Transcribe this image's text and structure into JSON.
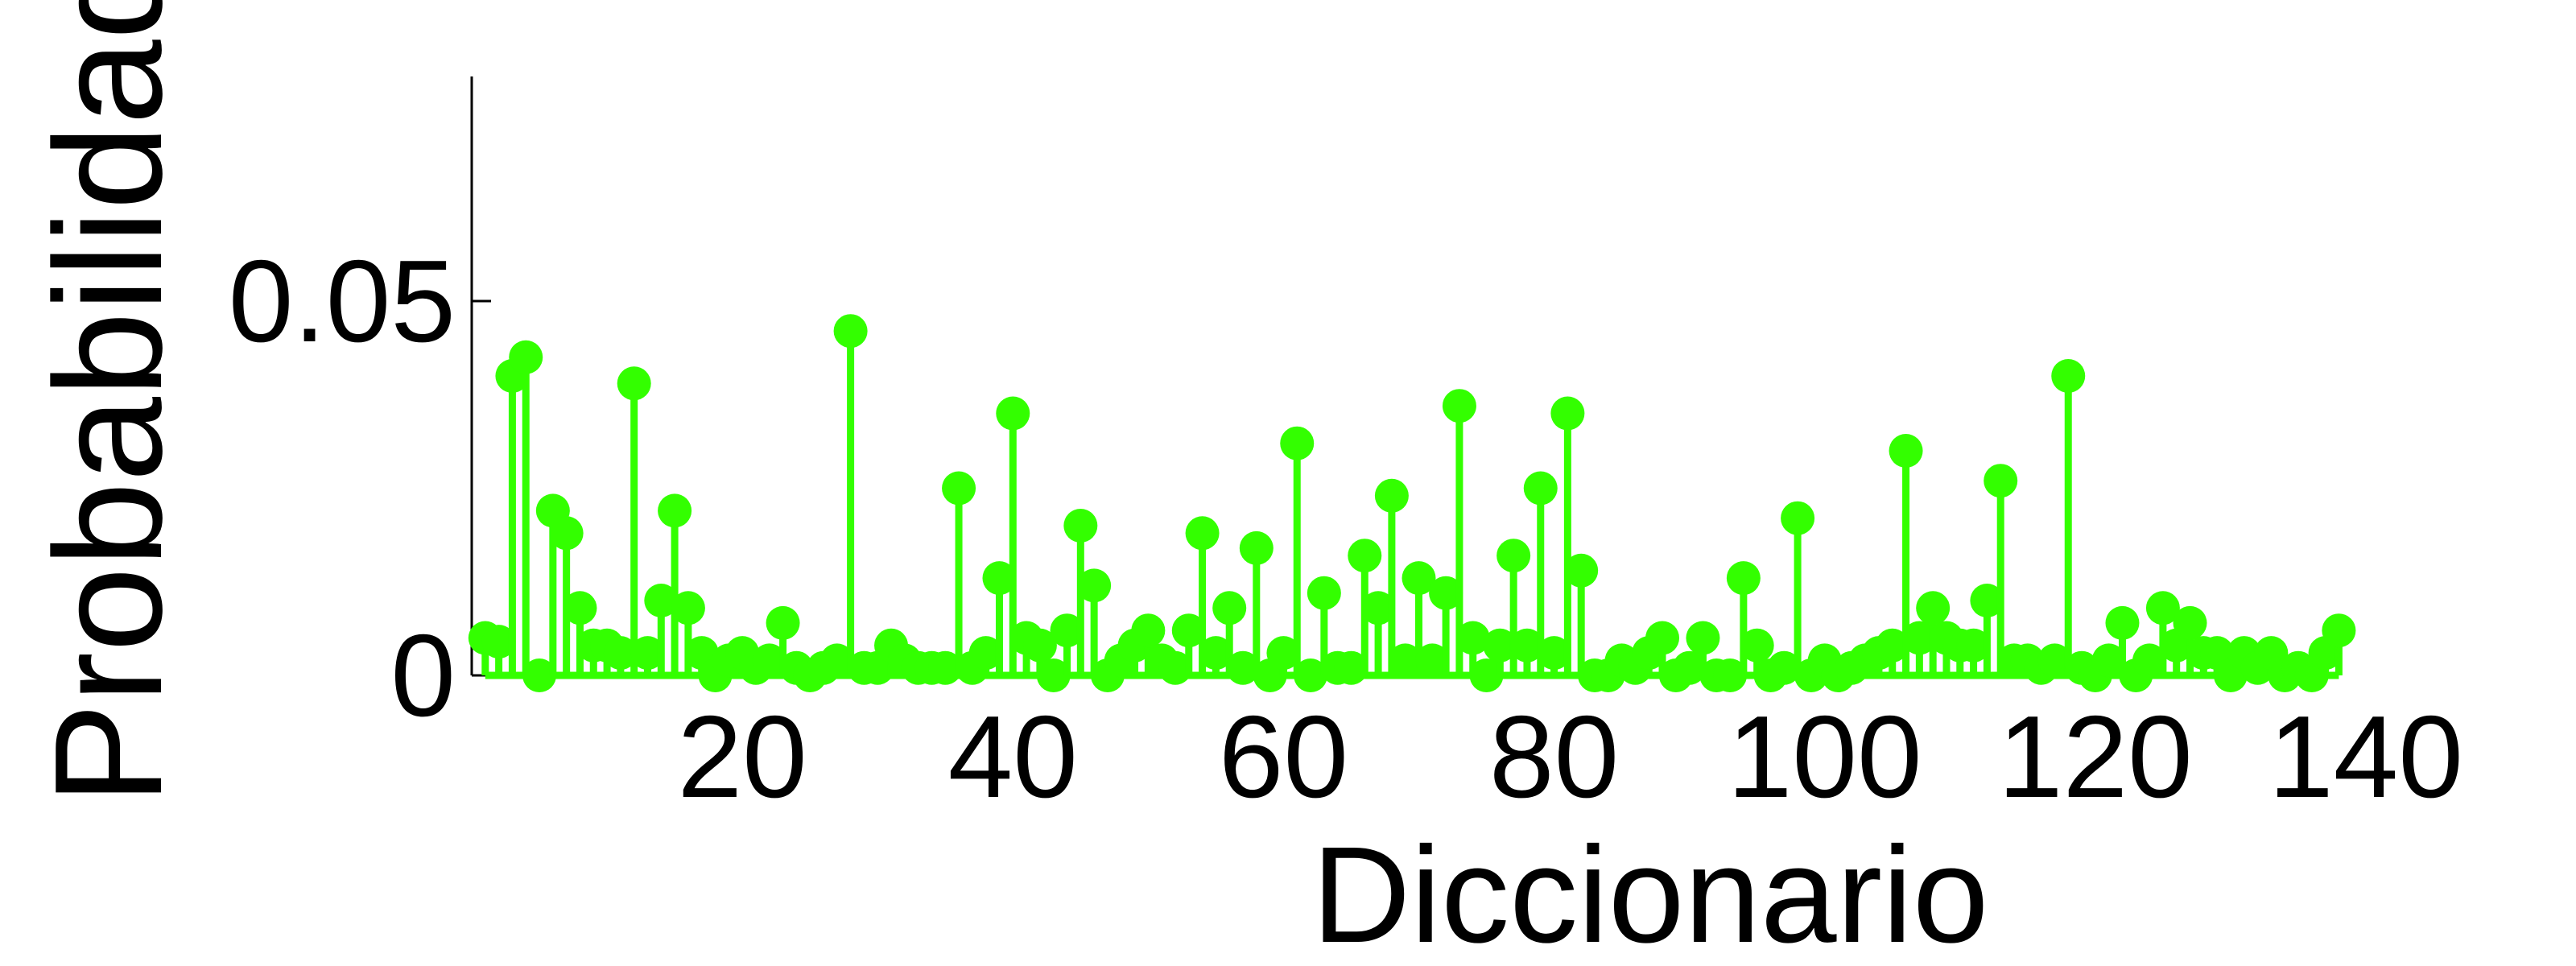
{
  "chart_data": {
    "type": "stem",
    "xlabel": "Diccionario",
    "ylabel": "Probabilidad",
    "x": [
      1,
      2,
      3,
      4,
      5,
      6,
      7,
      8,
      9,
      10,
      11,
      12,
      13,
      14,
      15,
      16,
      17,
      18,
      19,
      20,
      21,
      22,
      23,
      24,
      25,
      26,
      27,
      28,
      29,
      30,
      31,
      32,
      33,
      34,
      35,
      36,
      37,
      38,
      39,
      40,
      41,
      42,
      43,
      44,
      45,
      46,
      47,
      48,
      49,
      50,
      51,
      52,
      53,
      54,
      55,
      56,
      57,
      58,
      59,
      60,
      61,
      62,
      63,
      64,
      65,
      66,
      67,
      68,
      69,
      70,
      71,
      72,
      73,
      74,
      75,
      76,
      77,
      78,
      79,
      80,
      81,
      82,
      83,
      84,
      85,
      86,
      87,
      88,
      89,
      90,
      91,
      92,
      93,
      94,
      95,
      96,
      97,
      98,
      99,
      100,
      101,
      102,
      103,
      104,
      105,
      106,
      107,
      108,
      109,
      110,
      111,
      112,
      113,
      114,
      115,
      116,
      117,
      118,
      119,
      120,
      121,
      122,
      123,
      124,
      125,
      126,
      127,
      128,
      129,
      130,
      131,
      132,
      133,
      134,
      135,
      136,
      137,
      138
    ],
    "values": [
      0.005,
      0.0045,
      0.04,
      0.0425,
      0,
      0.022,
      0.019,
      0.009,
      0.004,
      0.004,
      0.003,
      0.039,
      0.003,
      0.01,
      0.022,
      0.009,
      0.003,
      0,
      0.002,
      0.003,
      0.001,
      0.002,
      0.007,
      0.001,
      0,
      0.001,
      0.002,
      0.046,
      0.001,
      0.001,
      0.004,
      0.002,
      0.001,
      0.001,
      0.001,
      0.025,
      0.001,
      0.003,
      0.013,
      0.035,
      0.005,
      0.004,
      0,
      0.006,
      0.02,
      0.012,
      0,
      0.002,
      0.004,
      0.006,
      0.002,
      0.001,
      0.006,
      0.019,
      0.003,
      0.009,
      0.001,
      0.017,
      0,
      0.003,
      0.031,
      0,
      0.011,
      0.001,
      0.001,
      0.016,
      0.009,
      0.024,
      0.002,
      0.013,
      0.002,
      0.011,
      0.036,
      0.005,
      0,
      0.004,
      0.016,
      0.004,
      0.025,
      0.003,
      0.035,
      0.014,
      0,
      0,
      0.002,
      0.001,
      0.003,
      0.005,
      0,
      0.001,
      0.005,
      0,
      0,
      0.013,
      0.004,
      0,
      0.001,
      0.021,
      0,
      0.002,
      0,
      0.001,
      0.002,
      0.003,
      0.004,
      0.03,
      0.005,
      0.009,
      0.005,
      0.004,
      0.004,
      0.01,
      0.026,
      0.002,
      0.002,
      0.001,
      0.002,
      0.04,
      0.001,
      0,
      0.002,
      0.007,
      0,
      0.002,
      0.009,
      0.004,
      0.007,
      0.003,
      0.003,
      0,
      0.003,
      0.001,
      0.003,
      0,
      0.001,
      0,
      0.003,
      0.006
    ],
    "color": "#33ff00",
    "xlim": [
      0,
      140
    ],
    "xticks": [
      20,
      40,
      60,
      80,
      100,
      120,
      140
    ],
    "ylim": [
      0,
      0.08
    ],
    "yticks": [
      0,
      0.05
    ]
  }
}
